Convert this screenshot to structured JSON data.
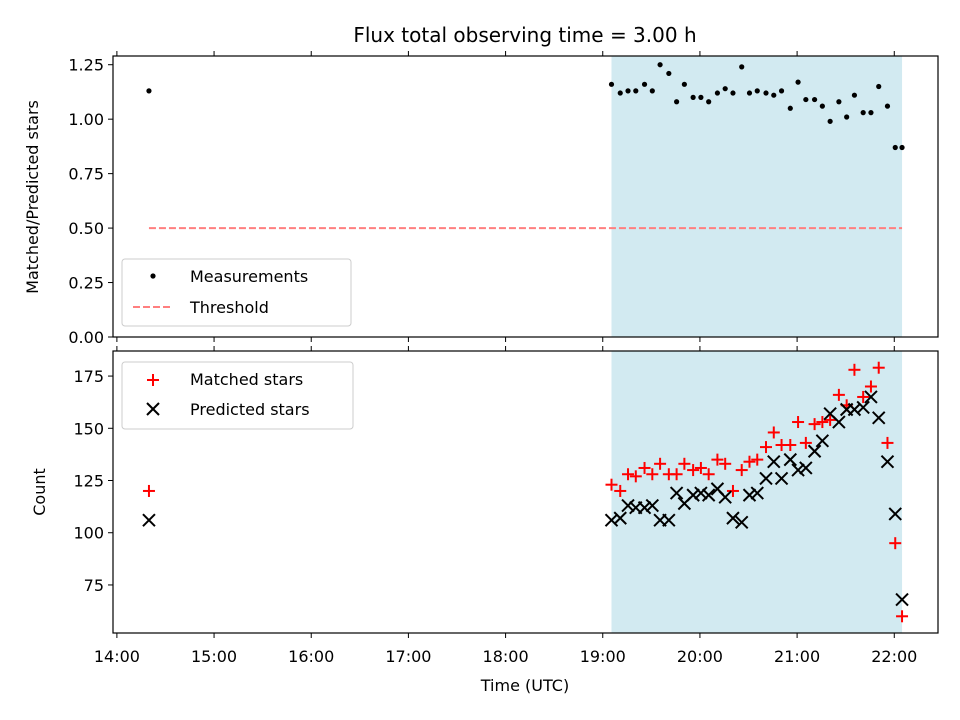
{
  "figure": {
    "title": "Flux total observing time = 3.00 h",
    "xlabel": "Time (UTC)",
    "x_tick_labels": [
      "14:00",
      "15:00",
      "16:00",
      "17:00",
      "18:00",
      "19:00",
      "20:00",
      "21:00",
      "22:00"
    ],
    "shaded_region_hours": [
      19.09,
      22.08
    ],
    "shade_color": "#add8e6",
    "xlim_hours": [
      13.96,
      22.45
    ]
  },
  "chart_data": [
    {
      "type": "scatter",
      "ylabel": "Matched/Predicted stars",
      "ylim": [
        0,
        1.29
      ],
      "y_ticks": [
        0.0,
        0.25,
        0.5,
        0.75,
        1.0,
        1.25
      ],
      "y_tick_labels": [
        "0.00",
        "0.25",
        "0.50",
        "0.75",
        "1.00",
        "1.25"
      ],
      "legend_position": "lower-left",
      "legend": [
        "Measurements",
        "Threshold"
      ],
      "threshold": {
        "value": 0.5,
        "x_range": [
          14.33,
          22.08
        ],
        "color": "#ff7f7f",
        "style": "dashed"
      },
      "series": [
        {
          "name": "Measurements",
          "color": "#000000",
          "marker": "dot",
          "x": [
            14.33,
            19.09,
            19.18,
            19.26,
            19.34,
            19.43,
            19.51,
            19.59,
            19.68,
            19.76,
            19.84,
            19.93,
            20.01,
            20.09,
            20.18,
            20.26,
            20.34,
            20.43,
            20.51,
            20.59,
            20.68,
            20.76,
            20.84,
            20.93,
            21.01,
            21.09,
            21.18,
            21.26,
            21.34,
            21.43,
            21.51,
            21.59,
            21.68,
            21.76,
            21.84,
            21.93,
            22.01,
            22.08
          ],
          "y": [
            1.13,
            1.16,
            1.12,
            1.13,
            1.13,
            1.16,
            1.13,
            1.25,
            1.21,
            1.08,
            1.16,
            1.1,
            1.1,
            1.08,
            1.12,
            1.14,
            1.12,
            1.24,
            1.12,
            1.13,
            1.12,
            1.11,
            1.13,
            1.05,
            1.17,
            1.09,
            1.09,
            1.06,
            0.99,
            1.08,
            1.01,
            1.11,
            1.03,
            1.03,
            1.15,
            1.06,
            0.87,
            0.87
          ]
        }
      ]
    },
    {
      "type": "scatter",
      "ylabel": "Count",
      "ylim": [
        52,
        187
      ],
      "y_ticks": [
        75,
        100,
        125,
        150,
        175
      ],
      "y_tick_labels": [
        "75",
        "100",
        "125",
        "150",
        "175"
      ],
      "legend_position": "upper-left",
      "legend": [
        "Matched stars",
        "Predicted stars"
      ],
      "series": [
        {
          "name": "Matched stars",
          "color": "#ff0000",
          "marker": "plus",
          "x": [
            14.33,
            19.09,
            19.18,
            19.26,
            19.34,
            19.43,
            19.51,
            19.59,
            19.68,
            19.76,
            19.84,
            19.93,
            20.01,
            20.09,
            20.18,
            20.26,
            20.34,
            20.43,
            20.51,
            20.59,
            20.68,
            20.76,
            20.84,
            20.93,
            21.01,
            21.09,
            21.18,
            21.26,
            21.34,
            21.43,
            21.51,
            21.59,
            21.68,
            21.76,
            21.84,
            21.93,
            22.01,
            22.08
          ],
          "y": [
            120,
            123,
            120,
            128,
            127,
            131,
            128,
            133,
            128,
            128,
            133,
            130,
            131,
            128,
            135,
            133,
            120,
            130,
            134,
            135,
            141,
            148,
            142,
            142,
            153,
            143,
            152,
            153,
            154,
            166,
            161,
            178,
            165,
            170,
            179,
            143,
            95,
            60
          ]
        },
        {
          "name": "Predicted stars",
          "color": "#000000",
          "marker": "x",
          "x": [
            14.33,
            19.09,
            19.18,
            19.26,
            19.34,
            19.43,
            19.51,
            19.59,
            19.68,
            19.76,
            19.84,
            19.93,
            20.01,
            20.09,
            20.18,
            20.26,
            20.34,
            20.43,
            20.51,
            20.59,
            20.68,
            20.76,
            20.84,
            20.93,
            21.01,
            21.09,
            21.18,
            21.26,
            21.34,
            21.43,
            21.51,
            21.59,
            21.68,
            21.76,
            21.84,
            21.93,
            22.01,
            22.08
          ],
          "y": [
            106,
            106,
            107,
            113,
            112,
            112,
            113,
            106,
            106,
            119,
            114,
            118,
            119,
            118,
            121,
            117,
            107,
            105,
            118,
            119,
            126,
            134,
            126,
            135,
            130,
            131,
            139,
            144,
            157,
            153,
            159,
            159,
            160,
            165,
            155,
            134,
            109,
            68
          ]
        }
      ]
    }
  ]
}
